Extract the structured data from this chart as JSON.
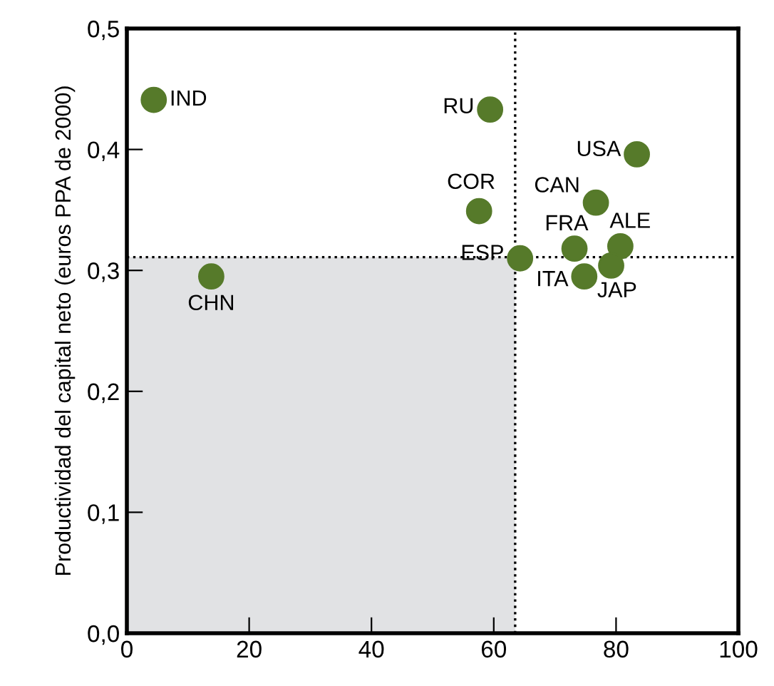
{
  "chart_data": {
    "type": "scatter",
    "ylabel": "Productividad del capital neto (euros PPA de 2000)",
    "x": [
      4.4,
      59.4,
      83.4,
      57.6,
      76.7,
      73.2,
      80.7,
      64.3,
      79.2,
      74.8,
      13.8
    ],
    "series": [
      {
        "color": "#567a2a",
        "values": [
          0.441,
          0.433,
          0.396,
          0.349,
          0.356,
          0.318,
          0.32,
          0.31,
          0.304,
          0.295,
          0.295
        ]
      }
    ],
    "marker": "circle",
    "grid": false,
    "xlim": [
      0,
      100
    ],
    "xticks": [
      0,
      20,
      40,
      60,
      80,
      100
    ],
    "ylim": [
      0,
      0.5
    ],
    "yticks": [
      {
        "value": 0,
        "label": "0,0"
      },
      {
        "value": 0.1,
        "label": "0,1"
      },
      {
        "value": 0.2,
        "label": "0,2"
      },
      {
        "value": 0.3,
        "label": "0,3"
      },
      {
        "value": 0.4,
        "label": "0,4"
      },
      {
        "value": 0.5,
        "label": "0,5"
      }
    ],
    "ref_lines": [
      {
        "axis": "x",
        "value": 63.5,
        "line_style": "dotted",
        "color": "#000000"
      },
      {
        "axis": "y",
        "value": 0.311,
        "line_style": "dotted",
        "color": "#000000"
      }
    ],
    "bands": [
      {
        "axis": "x",
        "from": 0,
        "to": 63.5,
        "color": "#e1e2e4"
      }
    ],
    "annotations": [
      {
        "text": "IND",
        "x": 4.4,
        "y": 0.441
      },
      {
        "text": "RU",
        "x": 59.4,
        "y": 0.433
      },
      {
        "text": "USA",
        "x": 83.4,
        "y": 0.396
      },
      {
        "text": "COR",
        "x": 57.6,
        "y": 0.349
      },
      {
        "text": "CAN",
        "x": 76.7,
        "y": 0.356
      },
      {
        "text": "FRA",
        "x": 73.2,
        "y": 0.318
      },
      {
        "text": "ALE",
        "x": 80.7,
        "y": 0.32
      },
      {
        "text": "ESP",
        "x": 64.3,
        "y": 0.31
      },
      {
        "text": "JAP",
        "x": 79.2,
        "y": 0.304
      },
      {
        "text": "ITA",
        "x": 74.8,
        "y": 0.295
      },
      {
        "text": "CHN",
        "x": 13.8,
        "y": 0.295
      }
    ]
  }
}
